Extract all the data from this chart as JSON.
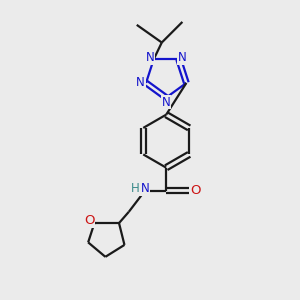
{
  "background_color": "#ebebeb",
  "bond_color": "#1a1a1a",
  "nitrogen_color": "#1414cc",
  "oxygen_color": "#cc1414",
  "hydrogen_color": "#3a8a8a",
  "line_width": 1.6,
  "font_size": 8.5,
  "figsize": [
    3.0,
    3.0
  ],
  "dpi": 100,
  "xlim": [
    0,
    10
  ],
  "ylim": [
    0,
    10
  ]
}
